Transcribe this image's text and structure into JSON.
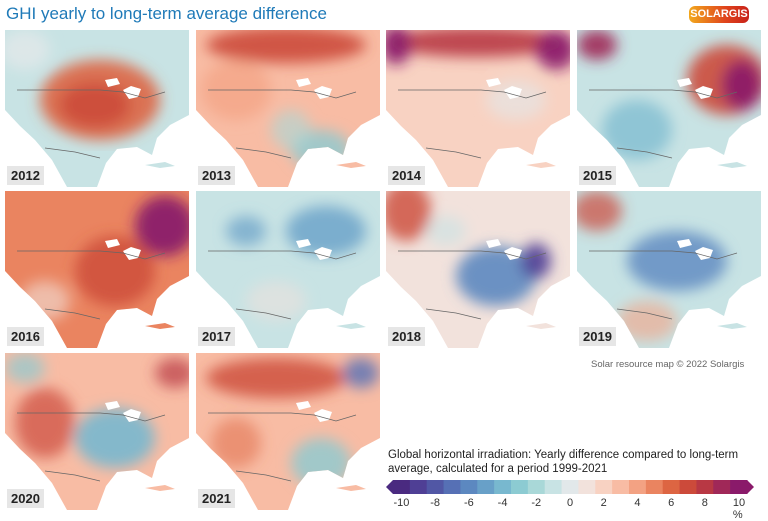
{
  "title": "GHI yearly to long-term average difference",
  "logo": "SOLARGIS",
  "panels": [
    {
      "year": "2012"
    },
    {
      "year": "2013"
    },
    {
      "year": "2014"
    },
    {
      "year": "2015"
    },
    {
      "year": "2016"
    },
    {
      "year": "2017"
    },
    {
      "year": "2018"
    },
    {
      "year": "2019"
    },
    {
      "year": "2020"
    },
    {
      "year": "2021"
    }
  ],
  "credit": "Solar resource map © 2022 Solargis",
  "legend": {
    "title": "Global horizontal irradiation: Yearly difference compared to long-term average, calculated for a period 1999-2021",
    "ticks": [
      "-10",
      "-8",
      "-6",
      "-4",
      "-2",
      "0",
      "2",
      "4",
      "6",
      "8",
      "10 %"
    ],
    "range": [
      -10,
      10
    ],
    "unit": "%",
    "colors": [
      "#4a2a80",
      "#4f3f95",
      "#5157a5",
      "#5670b5",
      "#5c88c0",
      "#68a0c8",
      "#78b8cf",
      "#8ccbd2",
      "#a9d8d8",
      "#c8e3e4",
      "#e2e8ea",
      "#f2e2dc",
      "#f8d2c2",
      "#f8bca4",
      "#f3a283",
      "#ea8460",
      "#dd6542",
      "#cc4a3a",
      "#b83844",
      "#a02858",
      "#8a1a6a"
    ]
  }
}
